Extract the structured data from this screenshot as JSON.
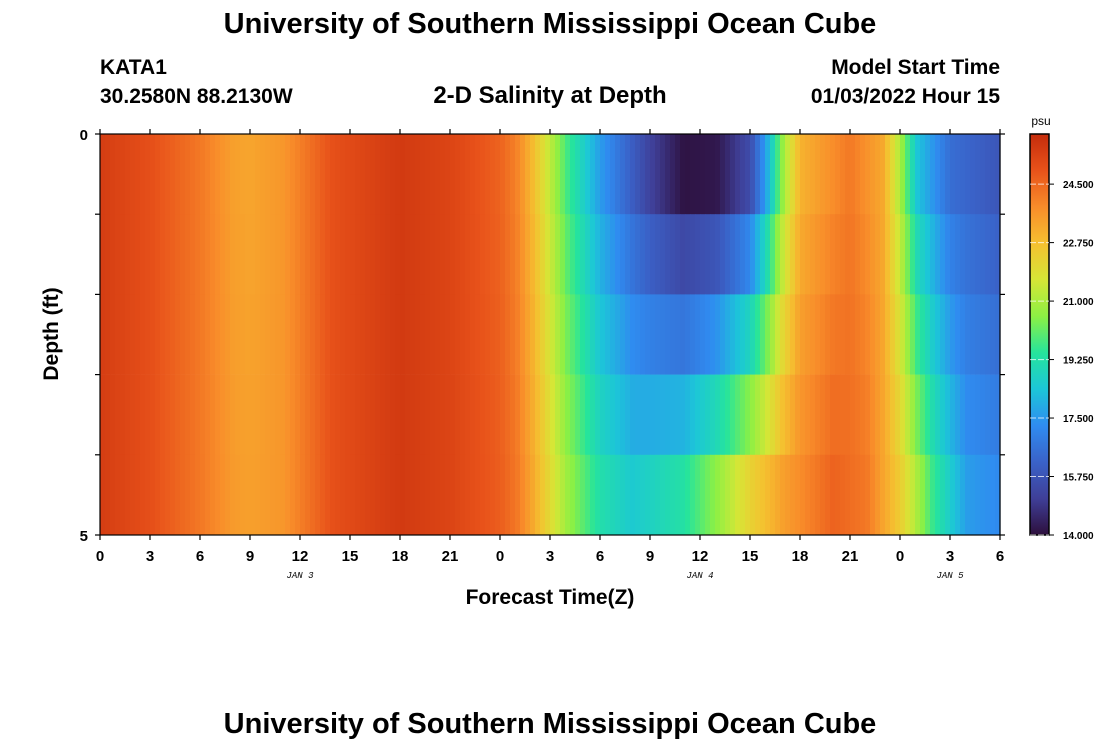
{
  "header": {
    "title": "University of Southern Mississippi Ocean Cube",
    "station_id": "KATA1",
    "station_coords": "30.2580N  88.2130W",
    "subtitle": "2-D Salinity at Depth",
    "start_label": "Model Start Time",
    "start_value": "01/03/2022 Hour 15"
  },
  "footer": {
    "title": "University of Southern Mississippi Ocean Cube"
  },
  "chart_data": {
    "type": "heatmap",
    "title": "2-D Salinity at Depth",
    "xlabel": "Forecast Time(Z)",
    "ylabel": "Depth (ft)",
    "x_tick_labels": [
      "0",
      "3",
      "6",
      "9",
      "12",
      "15",
      "18",
      "21",
      "0",
      "3",
      "6",
      "9",
      "12",
      "15",
      "18",
      "21",
      "0",
      "3",
      "6"
    ],
    "x_day_labels": [
      {
        "label": "JAN 3",
        "hour": 12
      },
      {
        "label": "JAN 4",
        "hour": 36
      },
      {
        "label": "JAN 5",
        "hour": 51
      }
    ],
    "x_range_hours": [
      0,
      54
    ],
    "x_step_hours": 3,
    "y_tick_labels": [
      "0",
      "5"
    ],
    "y_range": [
      0,
      5
    ],
    "colorbar": {
      "unit": "psu",
      "ticks": [
        "24.500",
        "22.750",
        "21.000",
        "19.250",
        "17.500",
        "15.750",
        "14.000"
      ],
      "range": [
        14.0,
        26.0
      ]
    },
    "depth_layers": [
      0,
      1,
      2,
      3,
      4,
      5
    ],
    "surface_salinity": [
      {
        "hour": 0,
        "value": 25.5
      },
      {
        "hour": 3,
        "value": 25.0
      },
      {
        "hour": 6,
        "value": 24.2
      },
      {
        "hour": 8,
        "value": 23.4
      },
      {
        "hour": 9,
        "value": 23.3
      },
      {
        "hour": 11,
        "value": 23.6
      },
      {
        "hour": 14,
        "value": 25.0
      },
      {
        "hour": 18,
        "value": 25.6
      },
      {
        "hour": 21,
        "value": 25.3
      },
      {
        "hour": 24,
        "value": 24.6
      },
      {
        "hour": 25,
        "value": 24.0
      },
      {
        "hour": 26,
        "value": 22.8
      },
      {
        "hour": 27,
        "value": 21.3
      },
      {
        "hour": 28,
        "value": 19.8
      },
      {
        "hour": 30,
        "value": 17.6
      },
      {
        "hour": 33,
        "value": 15.2
      },
      {
        "hour": 35,
        "value": 14.1
      },
      {
        "hour": 37,
        "value": 14.2
      },
      {
        "hour": 39,
        "value": 15.5
      },
      {
        "hour": 40,
        "value": 17.8
      },
      {
        "hour": 41,
        "value": 20.8
      },
      {
        "hour": 42,
        "value": 23.0
      },
      {
        "hour": 45,
        "value": 24.2
      },
      {
        "hour": 47,
        "value": 23.2
      },
      {
        "hour": 48,
        "value": 21.0
      },
      {
        "hour": 49,
        "value": 18.4
      },
      {
        "hour": 51,
        "value": 16.5
      },
      {
        "hour": 54,
        "value": 15.8
      }
    ],
    "bottom_salinity": [
      {
        "hour": 0,
        "value": 25.5
      },
      {
        "hour": 3,
        "value": 25.0
      },
      {
        "hour": 6,
        "value": 24.2
      },
      {
        "hour": 8,
        "value": 23.5
      },
      {
        "hour": 9,
        "value": 23.4
      },
      {
        "hour": 11,
        "value": 23.6
      },
      {
        "hour": 14,
        "value": 25.0
      },
      {
        "hour": 18,
        "value": 25.6
      },
      {
        "hour": 21,
        "value": 25.3
      },
      {
        "hour": 24,
        "value": 24.7
      },
      {
        "hour": 25,
        "value": 24.2
      },
      {
        "hour": 26,
        "value": 23.2
      },
      {
        "hour": 27,
        "value": 22.0
      },
      {
        "hour": 28,
        "value": 20.8
      },
      {
        "hour": 30,
        "value": 19.2
      },
      {
        "hour": 32,
        "value": 18.5
      },
      {
        "hour": 35,
        "value": 19.3
      },
      {
        "hour": 37,
        "value": 20.6
      },
      {
        "hour": 39,
        "value": 22.2
      },
      {
        "hour": 41,
        "value": 23.4
      },
      {
        "hour": 44,
        "value": 24.6
      },
      {
        "hour": 46,
        "value": 24.2
      },
      {
        "hour": 48,
        "value": 22.4
      },
      {
        "hour": 50,
        "value": 19.6
      },
      {
        "hour": 52,
        "value": 17.6
      },
      {
        "hour": 54,
        "value": 17.2
      }
    ],
    "colormap": [
      "#2d0f3c",
      "#3f3f98",
      "#3a62c8",
      "#2f8cf0",
      "#1cc6d8",
      "#26e49c",
      "#8cf044",
      "#d6e636",
      "#f5c030",
      "#f88c2a",
      "#e8521a",
      "#c52c0c"
    ]
  }
}
